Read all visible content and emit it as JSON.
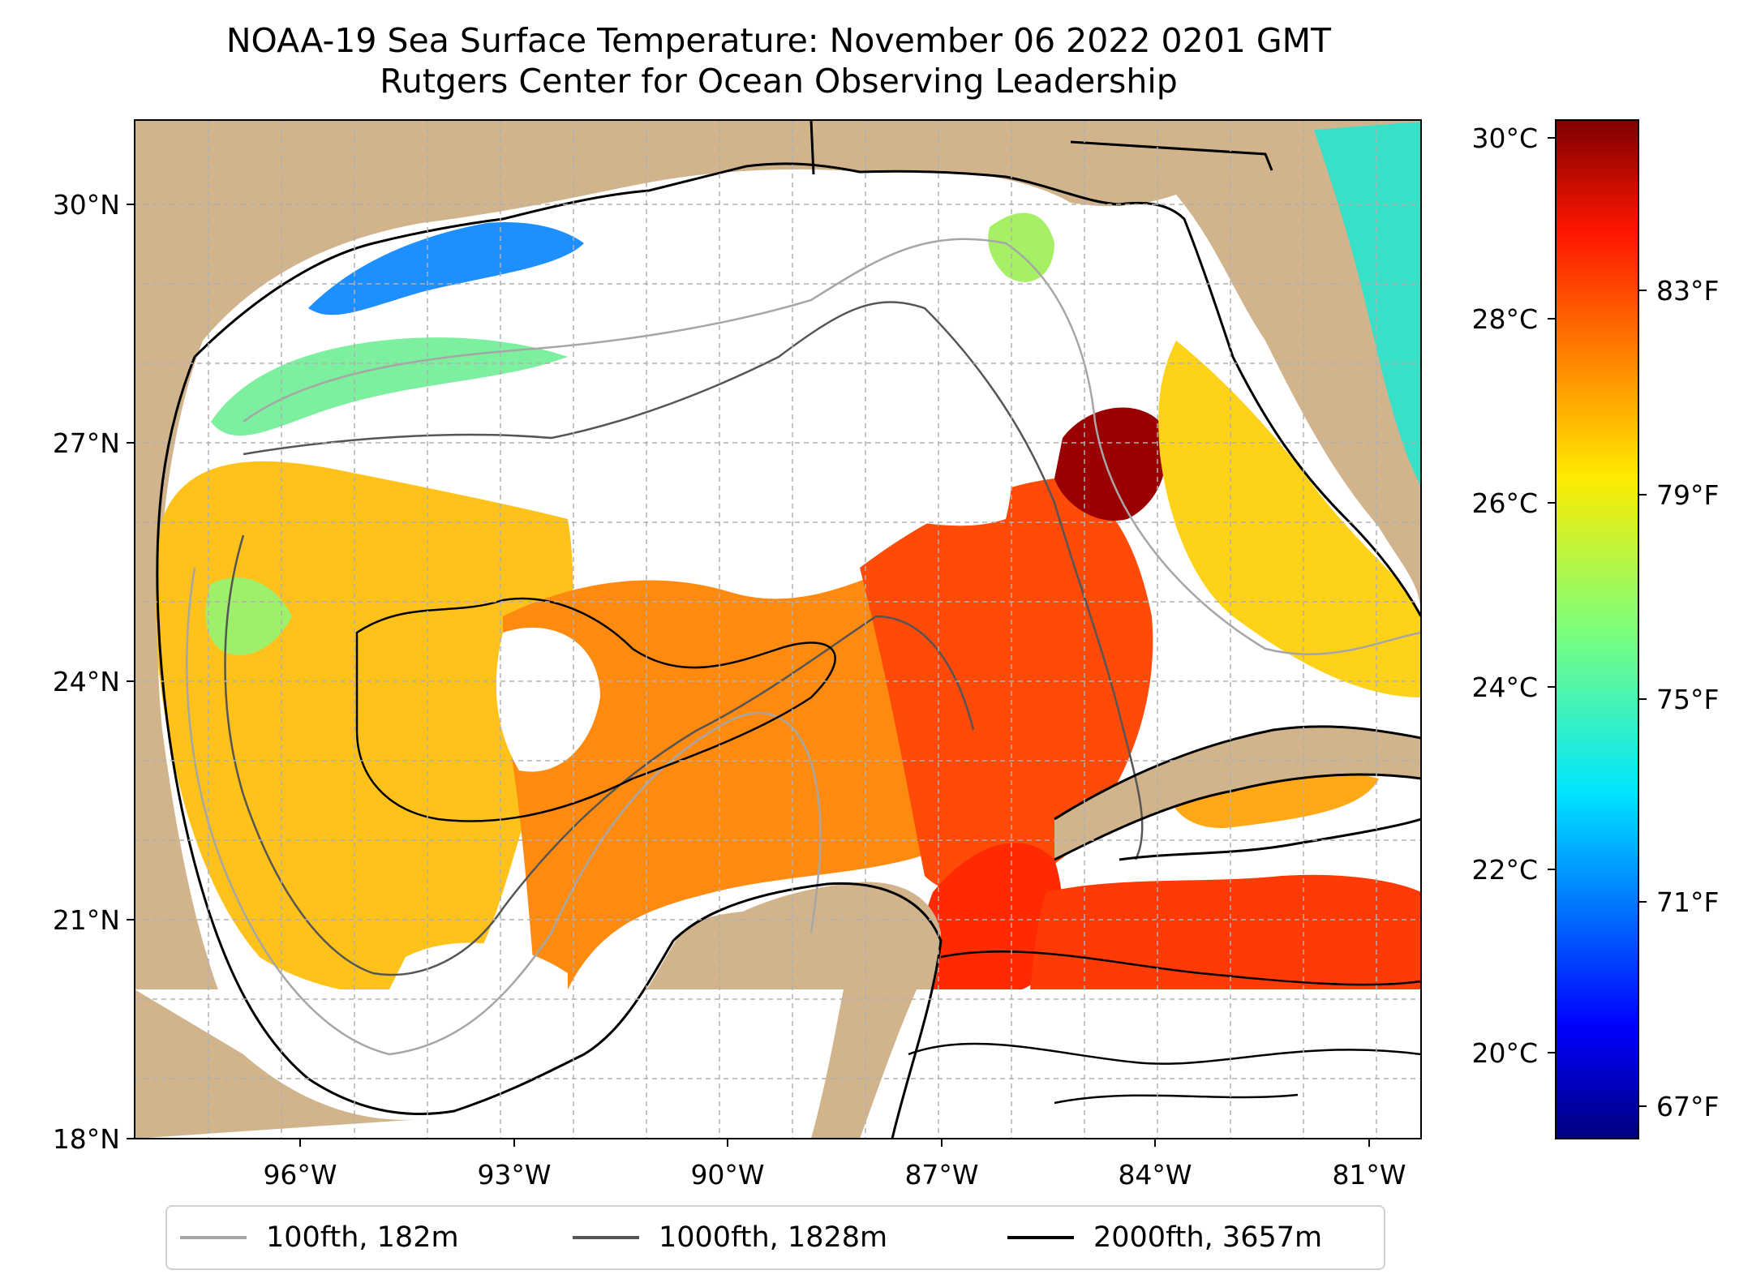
{
  "title": {
    "line1": "NOAA-19 Sea Surface Temperature: November 06 2022 0201 GMT",
    "line2": "Rutgers Center for Ocean Observing Leadership"
  },
  "map": {
    "lat_labels": [
      "30°N",
      "27°N",
      "24°N",
      "21°N",
      "18°N"
    ],
    "lon_labels": [
      "96°W",
      "93°W",
      "90°W",
      "87°W",
      "84°W",
      "81°W"
    ],
    "land_color": "#d2b48c",
    "gridlines": true
  },
  "colorbar": {
    "celsius_ticks": [
      "30°C",
      "28°C",
      "26°C",
      "24°C",
      "22°C",
      "20°C"
    ],
    "fahrenheit_ticks": [
      "83°F",
      "79°F",
      "75°F",
      "71°F",
      "67°F"
    ],
    "colormap": "jet"
  },
  "legend": {
    "items": [
      {
        "label": "100fth, 182m",
        "color": "#a6a6a6"
      },
      {
        "label": "1000fth, 1828m",
        "color": "#555555"
      },
      {
        "label": "2000fth, 3657m",
        "color": "#000000"
      }
    ]
  }
}
